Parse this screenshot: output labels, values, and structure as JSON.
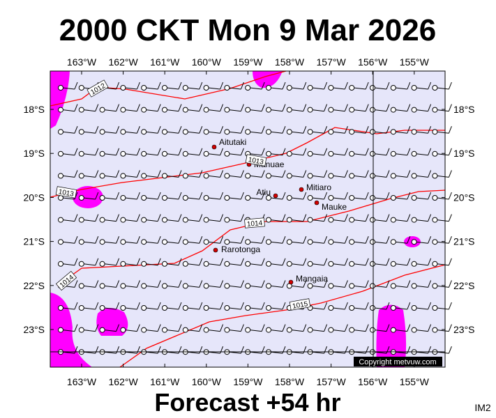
{
  "header": {
    "title": "2000 CKT Mon 9 Mar 2026"
  },
  "map": {
    "lon_ticks": [
      {
        "value": -163,
        "label": "163°W"
      },
      {
        "value": -162,
        "label": "162°W"
      },
      {
        "value": -161,
        "label": "161°W"
      },
      {
        "value": -160,
        "label": "160°W"
      },
      {
        "value": -159,
        "label": "159°W"
      },
      {
        "value": -158,
        "label": "158°W"
      },
      {
        "value": -157,
        "label": "157°W"
      },
      {
        "value": -156,
        "label": "156°W"
      },
      {
        "value": -155,
        "label": "155°W"
      }
    ],
    "lat_ticks": [
      {
        "value": -18,
        "label": "18°S"
      },
      {
        "value": -19,
        "label": "19°S"
      },
      {
        "value": -20,
        "label": "20°S"
      },
      {
        "value": -21,
        "label": "21°S"
      },
      {
        "value": -22,
        "label": "22°S"
      },
      {
        "value": -23,
        "label": "23°S"
      }
    ],
    "places": [
      "Aitutaki",
      "Manuae",
      "Atiu",
      "Mitiaro",
      "Mauke",
      "Rarotonga",
      "Mangaia"
    ],
    "isobar_labels": [
      "1012",
      "1013",
      "1013",
      "1014",
      "1014",
      "1015"
    ],
    "copyright": "Copyright metvuw.com"
  },
  "footer": {
    "forecast": "Forecast +54 hr",
    "code": "IM2"
  }
}
